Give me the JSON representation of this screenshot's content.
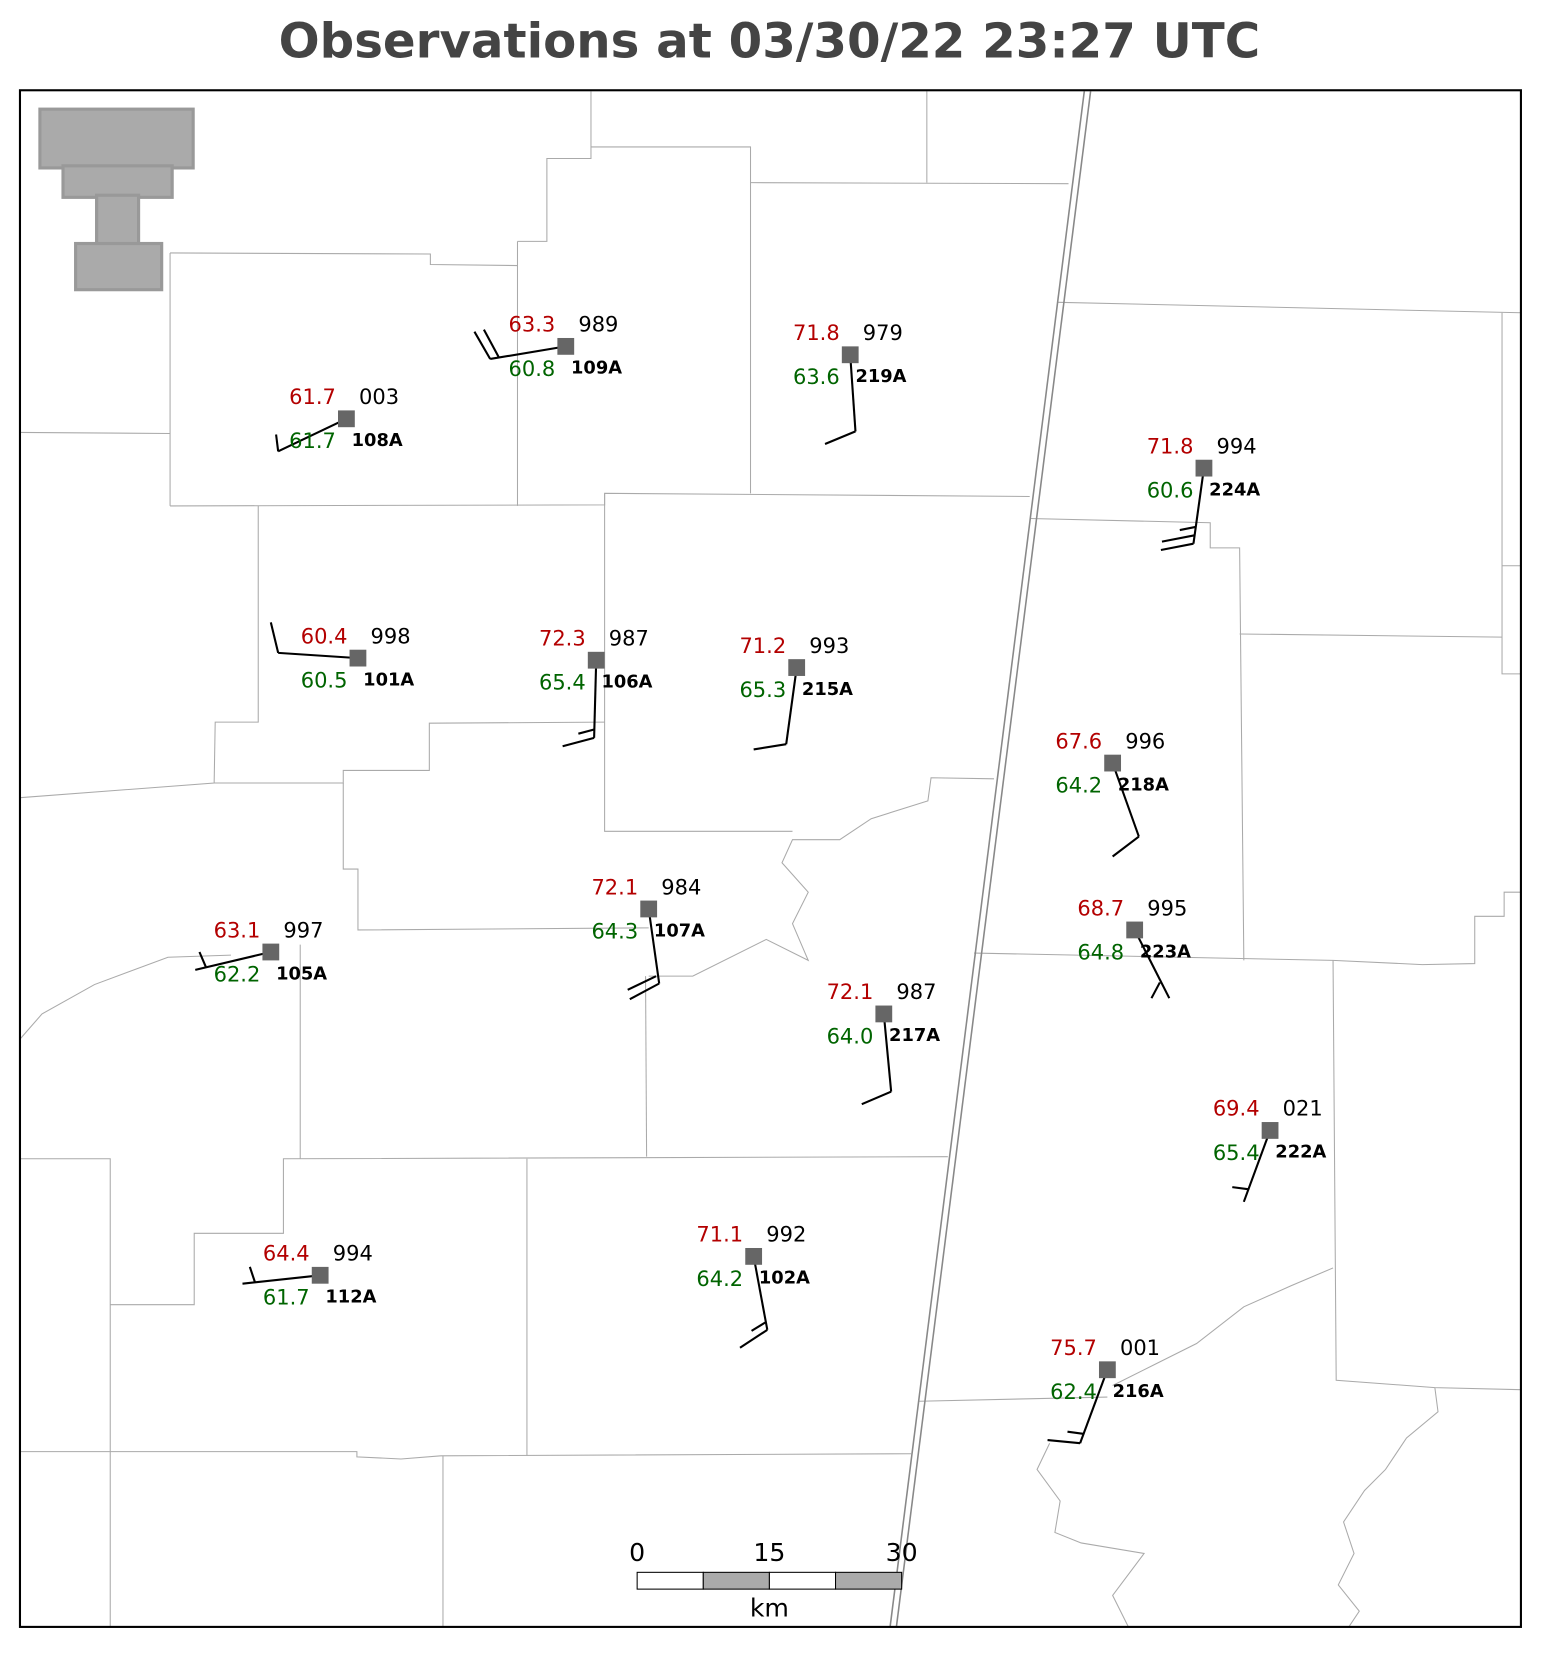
{
  "title": "Observations at 03/30/22 23:27 UTC",
  "stations": [
    {
      "id": "108A",
      "temperature": "61.7",
      "dewpoint": "61.7",
      "pressure": "003"
    },
    {
      "id": "109A",
      "temperature": "63.3",
      "dewpoint": "60.8",
      "pressure": "989"
    },
    {
      "id": "219A",
      "temperature": "71.8",
      "dewpoint": "63.6",
      "pressure": "979"
    },
    {
      "id": "224A",
      "temperature": "71.8",
      "dewpoint": "60.6",
      "pressure": "994"
    },
    {
      "id": "101A",
      "temperature": "60.4",
      "dewpoint": "60.5",
      "pressure": "998"
    },
    {
      "id": "106A",
      "temperature": "72.3",
      "dewpoint": "65.4",
      "pressure": "987"
    },
    {
      "id": "215A",
      "temperature": "71.2",
      "dewpoint": "65.3",
      "pressure": "993"
    },
    {
      "id": "218A",
      "temperature": "67.6",
      "dewpoint": "64.2",
      "pressure": "996"
    },
    {
      "id": "105A",
      "temperature": "63.1",
      "dewpoint": "62.2",
      "pressure": "997"
    },
    {
      "id": "107A",
      "temperature": "72.1",
      "dewpoint": "64.3",
      "pressure": "984"
    },
    {
      "id": "223A",
      "temperature": "68.7",
      "dewpoint": "64.8",
      "pressure": "995"
    },
    {
      "id": "217A",
      "temperature": "72.1",
      "dewpoint": "64.0",
      "pressure": "987"
    },
    {
      "id": "222A",
      "temperature": "69.4",
      "dewpoint": "65.4",
      "pressure": "021"
    },
    {
      "id": "112A",
      "temperature": "64.4",
      "dewpoint": "61.7",
      "pressure": "994"
    },
    {
      "id": "102A",
      "temperature": "71.1",
      "dewpoint": "64.2",
      "pressure": "992"
    },
    {
      "id": "216A",
      "temperature": "75.7",
      "dewpoint": "62.4",
      "pressure": "001"
    }
  ],
  "scale_bar": {
    "ticks": [
      "0",
      "15",
      "30"
    ],
    "unit": "km"
  }
}
